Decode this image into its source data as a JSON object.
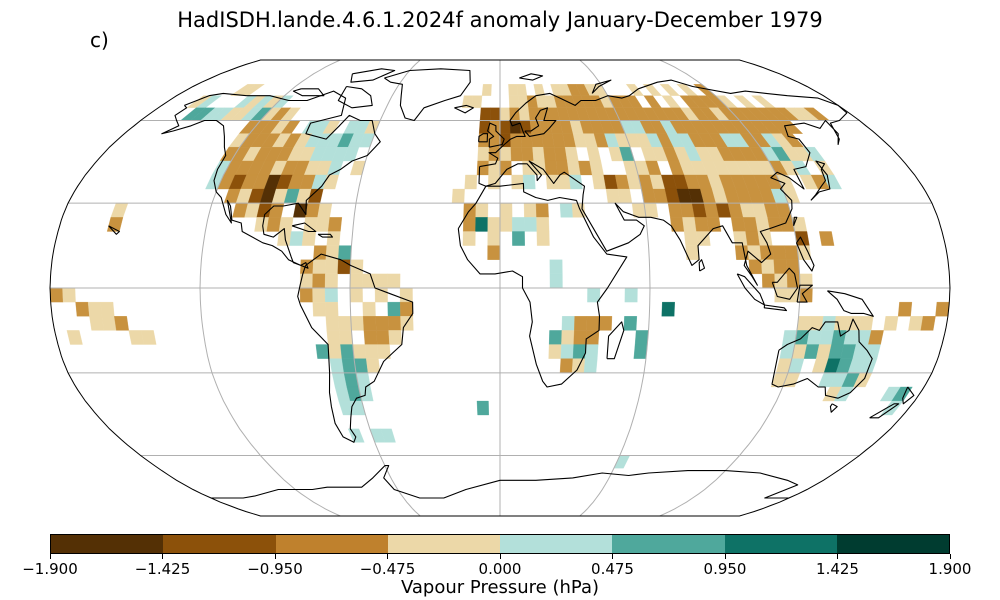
{
  "title": "HadISDH.lande.4.6.1.2024f anomaly January-December 1979",
  "panel_label": "c)",
  "colorbar": {
    "label": "Vapour Pressure (hPa)",
    "ticks": [
      "−1.900",
      "−1.425",
      "−0.950",
      "−0.475",
      "0.000",
      "0.475",
      "0.950",
      "1.425",
      "1.900"
    ],
    "colors": [
      "#543005",
      "#8c510a",
      "#bf812d",
      "#ecd8a8",
      "#b3e0da",
      "#4fa89c",
      "#0e7266",
      "#003c30"
    ]
  },
  "map": {
    "projection": "Robinson",
    "graticule": true,
    "coastlines": true,
    "gridline_color": "#b0b0b0",
    "cell_colors": {
      "n3": "#543005",
      "n2": "#8c510a",
      "n1": "#c8923f",
      "n0": "#ecd8a8",
      "p0": "#b3e0da",
      "p1": "#4fa89c",
      "p2": "#0e7266"
    }
  }
}
